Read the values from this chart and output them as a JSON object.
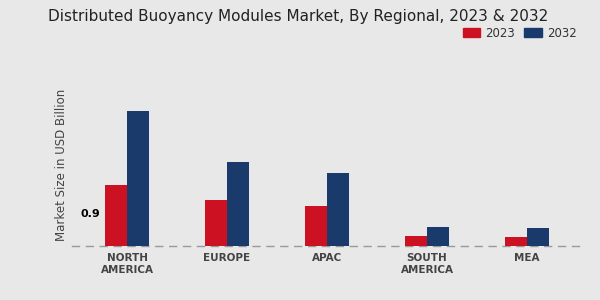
{
  "title": "Distributed Buoyancy Modules Market, By Regional, 2023 & 2032",
  "ylabel": "Market Size in USD Billion",
  "categories": [
    "NORTH\nAMERICA",
    "EUROPE",
    "APAC",
    "SOUTH\nAMERICA",
    "MEA"
  ],
  "values_2023": [
    0.9,
    0.68,
    0.6,
    0.15,
    0.13
  ],
  "values_2032": [
    2.0,
    1.25,
    1.08,
    0.28,
    0.26
  ],
  "color_2023": "#cc1122",
  "color_2032": "#1a3a6b",
  "annotation_text": "0.9",
  "annotation_index": 0,
  "background_color": "#e8e8e8",
  "legend_labels": [
    "2023",
    "2032"
  ],
  "title_fontsize": 11,
  "ylabel_fontsize": 8.5,
  "tick_fontsize": 7.5,
  "bar_width": 0.22,
  "ylim": [
    0,
    2.4
  ]
}
